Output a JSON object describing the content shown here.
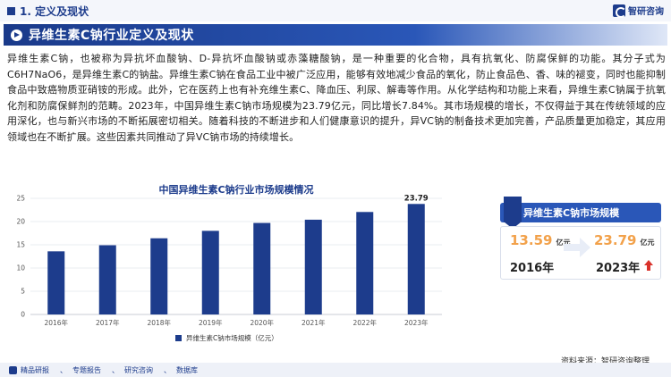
{
  "header": {
    "section_title": "1. 定义及现状",
    "brand_name": "智研咨询"
  },
  "banner": {
    "title": "异维生素C钠行业定义及现状"
  },
  "body_text": "异维生素C钠，也被称为异抗坏血酸钠、D-异抗坏血酸钠或赤藻糖酸钠，是一种重要的化合物，具有抗氧化、防腐保鲜的功能。其分子式为C6H7NaO6，是异维生素C的钠盐。异维生素C钠在食品工业中被广泛应用，能够有效地减少食品的氧化，防止食品色、香、味的褪变，同时也能抑制食品中致癌物质亚硝铵的形成。此外，它在医药上也有补充维生素C、降血压、利尿、解毒等作用。从化学结构和功能上来看，异维生素C钠属于抗氧化剂和防腐保鲜剂的范畴。2023年，中国异维生素C钠市场规模为23.79亿元，同比增长7.84%。其市场规模的增长，不仅得益于其在传统领域的应用深化，也与新兴市场的不断拓展密切相关。随着科技的不断进步和人们健康意识的提升，异VC钠的制备技术更加完善，产品质量更加稳定，其应用领域也在不断扩展。这些因素共同推动了异VC钠市场的持续增长。",
  "chart_data": {
    "type": "bar",
    "title": "中国异维生素C钠行业市场规模情况",
    "categories": [
      "2016年",
      "2017年",
      "2018年",
      "2019年",
      "2020年",
      "2021年",
      "2022年",
      "2023年"
    ],
    "series": [
      {
        "name": "异维生素C钠市场规模（亿元）",
        "values": [
          13.59,
          14.9,
          16.4,
          18.0,
          19.7,
          20.4,
          22.06,
          23.79
        ]
      }
    ],
    "data_labels": {
      "2023年": "23.79"
    },
    "ylim": [
      0,
      25
    ],
    "yticks": [
      0,
      5,
      10,
      15,
      20,
      25
    ],
    "grid": true,
    "legend_position": "bottom",
    "bar_color": "#1d3c8c"
  },
  "side_panel": {
    "title": "异维生素C钠市场规模",
    "left_value": "13.59",
    "left_unit": "亿元",
    "left_year": "2016年",
    "right_value": "23.79",
    "right_unit": "亿元",
    "right_year": "2023年"
  },
  "source": "资料来源：智研咨询整理",
  "footer": {
    "item1": "精品研报",
    "item2": "专题报告",
    "item3": "研究咨询",
    "item4": "数据库"
  },
  "colors": {
    "primary": "#1d3c8c",
    "accent": "#2a57b8",
    "highlight": "#f2a14a",
    "up": "#d9322b"
  }
}
